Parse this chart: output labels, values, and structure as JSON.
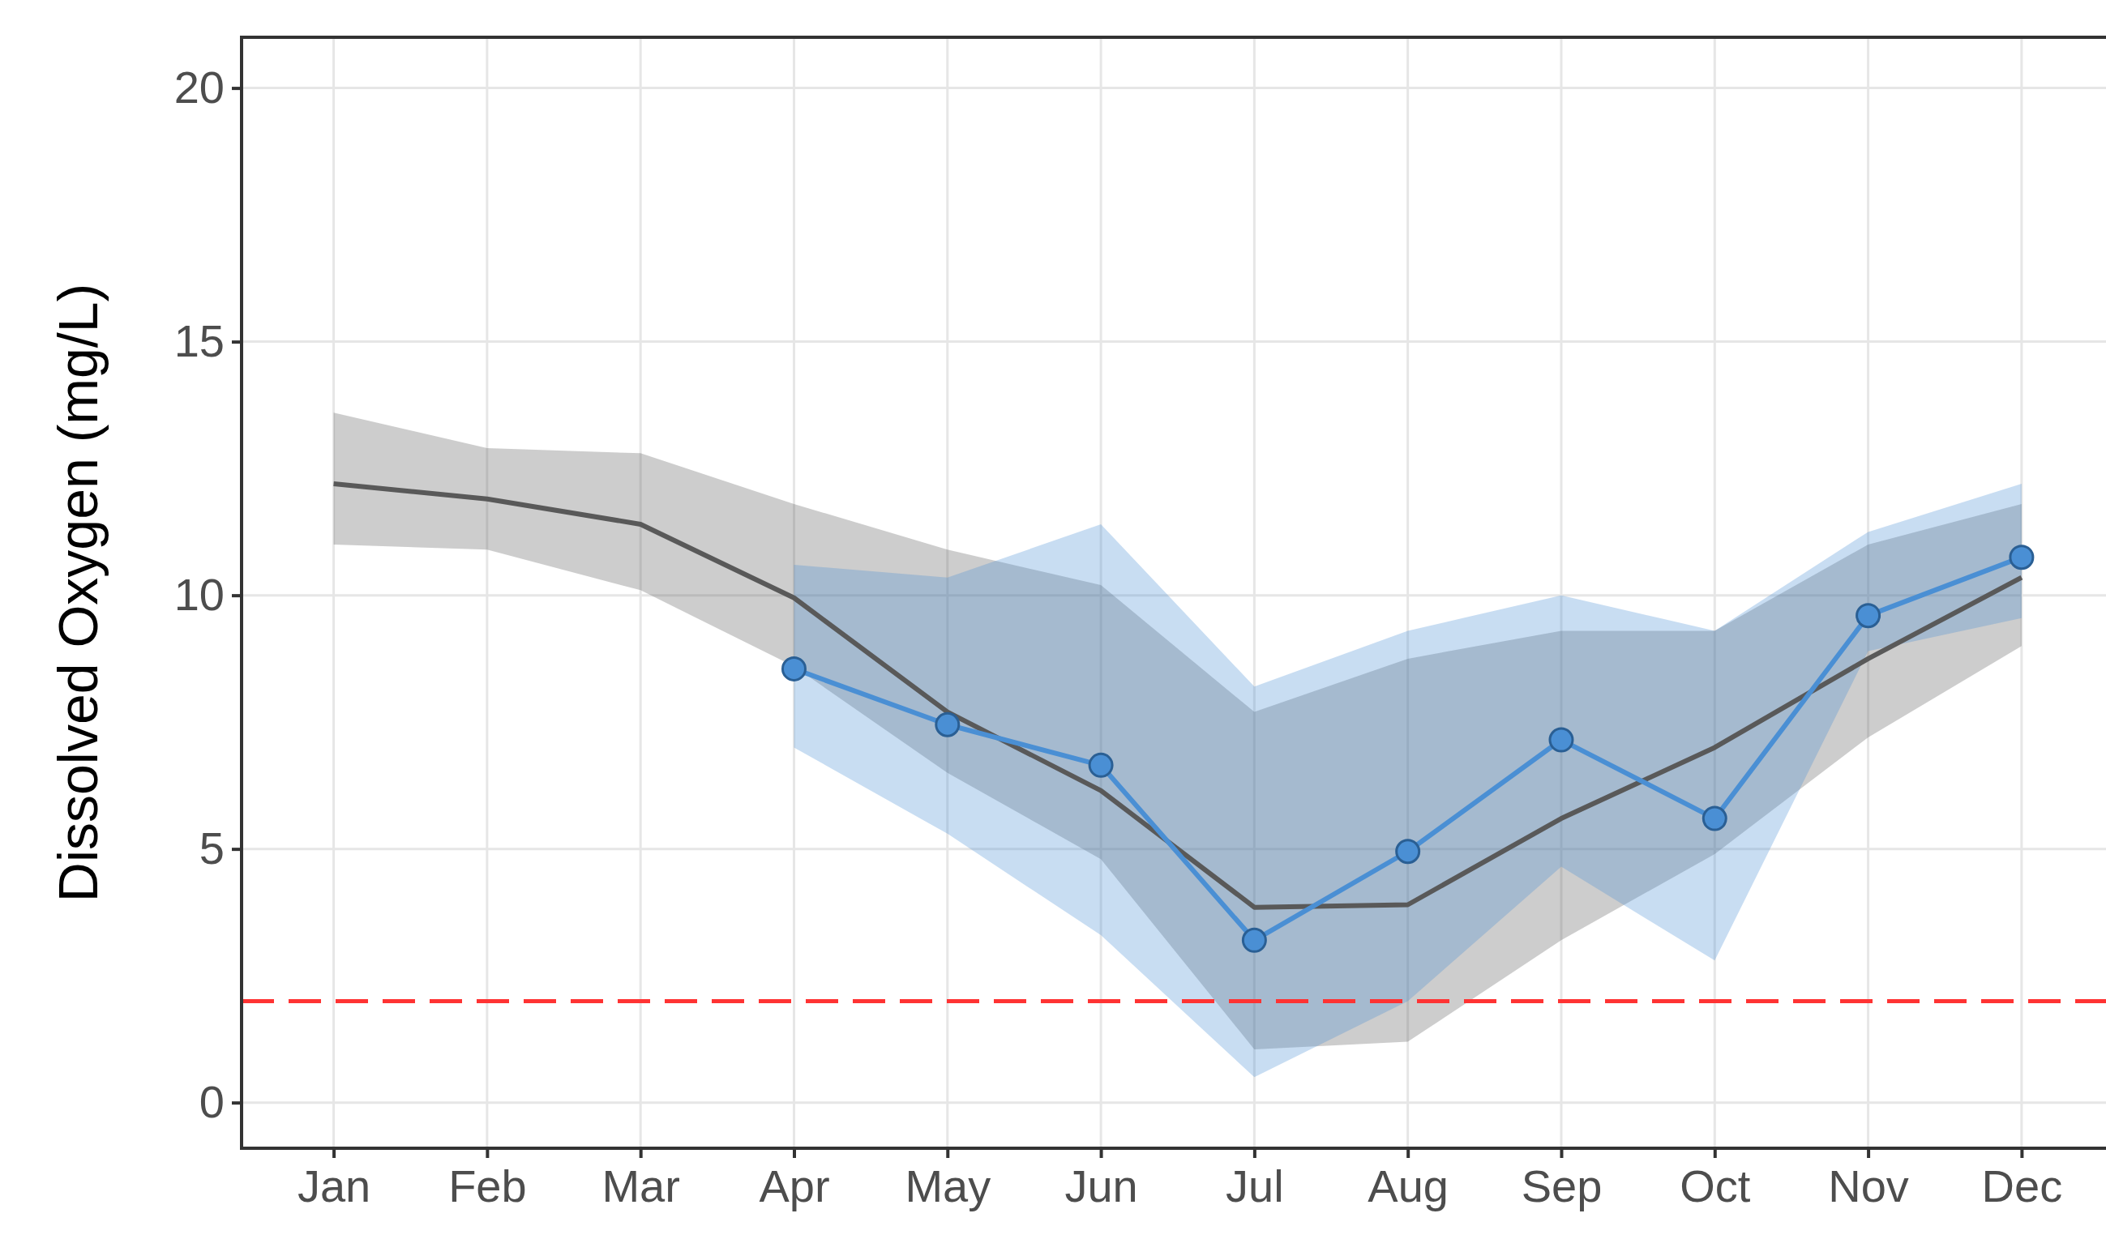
{
  "chart_data": {
    "type": "line",
    "ylabel": "Dissolved Oxygen (mg/L)",
    "categories": [
      "Jan",
      "Feb",
      "Mar",
      "Apr",
      "May",
      "Jun",
      "Jul",
      "Aug",
      "Sep",
      "Oct",
      "Nov",
      "Dec"
    ],
    "series": [
      {
        "color": "#595959",
        "marker": "none",
        "values": [
          12.2,
          11.9,
          11.4,
          9.95,
          7.7,
          6.15,
          3.85,
          3.9,
          5.6,
          7.0,
          8.75,
          10.35
        ],
        "lower": [
          11.0,
          10.9,
          10.1,
          8.6,
          6.5,
          4.8,
          1.05,
          1.2,
          3.2,
          4.9,
          7.2,
          9.0
        ],
        "upper": [
          13.6,
          12.9,
          12.8,
          11.8,
          10.9,
          10.2,
          7.7,
          8.75,
          9.3,
          9.3,
          11.0,
          11.8
        ]
      },
      {
        "color": "#4a8fd4",
        "marker": "circle",
        "values": [
          null,
          null,
          null,
          8.55,
          7.45,
          6.65,
          3.2,
          4.95,
          7.15,
          5.6,
          9.6,
          10.75
        ],
        "lower": [
          null,
          null,
          null,
          7.0,
          5.3,
          3.3,
          0.5,
          2.0,
          4.65,
          2.8,
          8.9,
          9.55
        ],
        "upper": [
          null,
          null,
          null,
          10.6,
          10.35,
          11.4,
          8.2,
          9.3,
          10.0,
          9.3,
          11.25,
          12.2
        ]
      }
    ],
    "ylim": [
      -0.9,
      21
    ],
    "yticks": [
      0,
      5,
      10,
      15,
      20
    ],
    "grid": true,
    "ref_lines": [
      {
        "axis": "y",
        "value": 2,
        "color": "#ff3333",
        "line_style": "dashed"
      }
    ]
  }
}
